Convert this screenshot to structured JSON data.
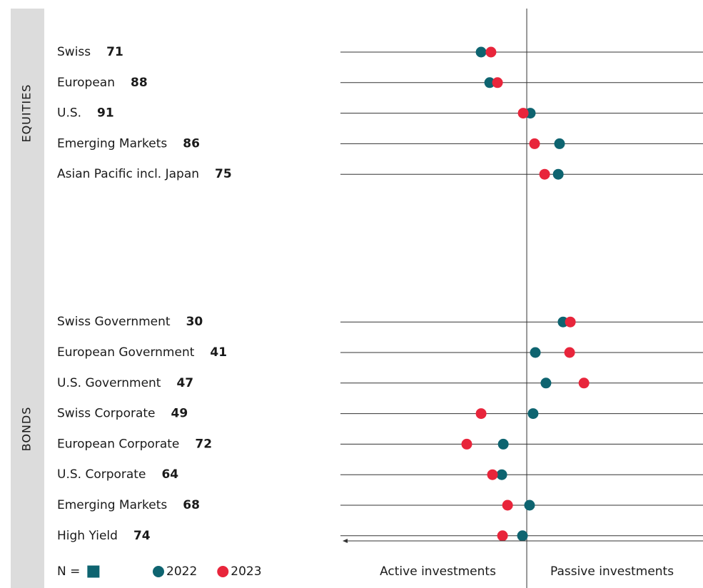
{
  "chart_data": {
    "type": "dot",
    "groups": [
      {
        "name": "EQUITIES",
        "size": 5
      },
      {
        "name": "BONDS",
        "size": 8
      }
    ],
    "categories": [
      "Swiss",
      "European",
      "U.S.",
      "Emerging Markets",
      "Asian Pacific incl. Japan",
      "Swiss Government",
      "European Government",
      "U.S. Government",
      "Swiss Corporate",
      "European Corporate",
      "U.S. Corporate",
      "Emerging Markets",
      "High Yield"
    ],
    "n": [
      71,
      88,
      91,
      86,
      75,
      30,
      41,
      47,
      49,
      72,
      64,
      68,
      74
    ],
    "n_label": "N =",
    "n_color": "#0e6470",
    "series": [
      {
        "name": "2022",
        "color": "#0e6470",
        "values": [
          -24.5,
          -19.9,
          1.9,
          17.6,
          16.9,
          19.5,
          4.6,
          10.3,
          3.4,
          -12.6,
          -13.4,
          1.5,
          -2.3
        ]
      },
      {
        "name": "2023",
        "color": "#e8253b",
        "values": [
          -19.2,
          -15.7,
          -1.9,
          4.2,
          9.6,
          23.4,
          23.0,
          30.7,
          -24.5,
          -32.2,
          -18.4,
          -10.3,
          -13.0
        ]
      }
    ],
    "xlim": [
      -100,
      94.6
    ],
    "x_labels": [
      "Active investments",
      "Passive investments"
    ]
  }
}
